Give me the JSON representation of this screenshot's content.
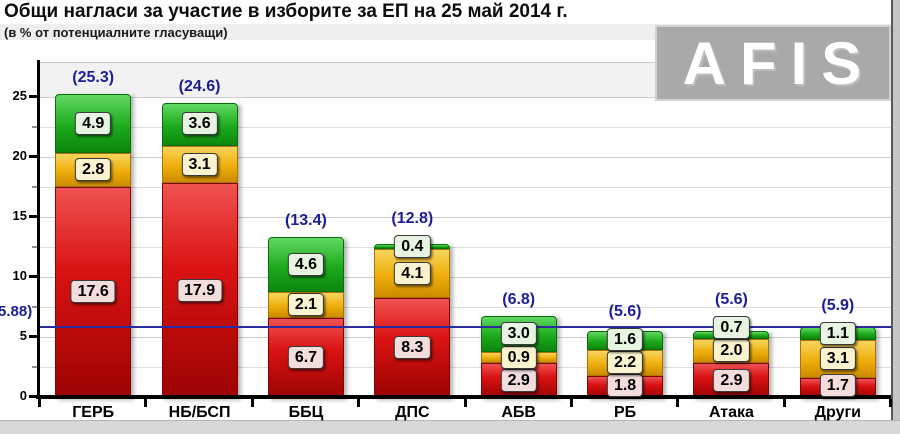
{
  "header": {
    "title": "Общи нагласи за участие в изборите за ЕП на 25 май 2014 г.",
    "subtitle": "(в % от потенциалните гласуващи)"
  },
  "watermark": "AFIS",
  "chart_data": {
    "type": "bar",
    "stacked": true,
    "title": "Общи нагласи за участие в изборите за ЕП на 25 май 2014 г.",
    "subtitle": "(в % от потенциалните гласуващи)",
    "categories": [
      "ГЕРБ",
      "НБ/БСП",
      "ББЦ",
      "ДПС",
      "АБВ",
      "РБ",
      "Атака",
      "Други"
    ],
    "series": [
      {
        "id": "red",
        "name": "red-bottom-segment",
        "color": "#d91111",
        "label_bg": "#f3dcdc",
        "values": [
          17.6,
          17.9,
          6.7,
          8.3,
          2.9,
          1.8,
          2.9,
          1.7
        ]
      },
      {
        "id": "yellow",
        "name": "yellow-middle-segment",
        "color": "#eeae0a",
        "label_bg": "#faf3cf",
        "values": [
          2.8,
          3.1,
          2.1,
          4.1,
          0.9,
          2.2,
          2.0,
          3.1
        ]
      },
      {
        "id": "green",
        "name": "green-top-segment",
        "color": "#1cab1c",
        "label_bg": "#e6f4e1",
        "values": [
          4.9,
          3.6,
          4.6,
          0.4,
          3.0,
          1.6,
          0.7,
          1.1
        ]
      }
    ],
    "totals": [
      25.3,
      24.6,
      13.4,
      12.8,
      6.8,
      5.6,
      5.6,
      5.9
    ],
    "totals_display": [
      "(25.3)",
      "(24.6)",
      "(13.4)",
      "(12.8)",
      "(6.8)",
      "(5.6)",
      "(5.6)",
      "(5.9)"
    ],
    "total_label_color": "#1d1d97",
    "reference_line": {
      "value": 5.88,
      "label": "(5.88)",
      "color": "#2b2ba0"
    },
    "y_ticks": [
      0,
      5,
      10,
      15,
      20,
      25
    ],
    "ylim": [
      0,
      27.9
    ],
    "grid": "horizontal, step 2.5, light gray",
    "legend": "none"
  }
}
